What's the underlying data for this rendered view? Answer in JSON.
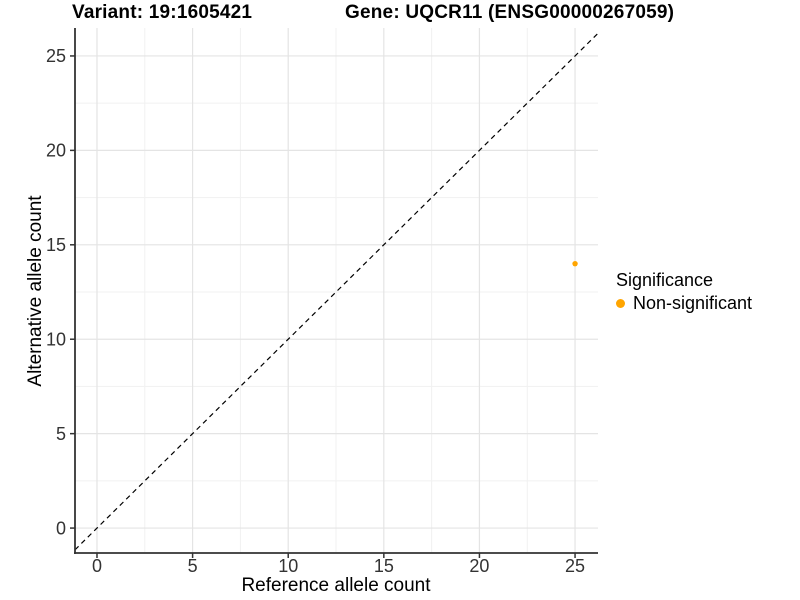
{
  "chart_data": {
    "type": "scatter",
    "title_left": "Variant: 19:1605421",
    "title_right": "Gene: UQCR11 (ENSG00000267059)",
    "xlabel": "Reference allele count",
    "ylabel": "Alternative allele count",
    "xlim": [
      -1.15,
      26.2
    ],
    "ylim": [
      -1.32,
      26.48
    ],
    "xticks": [
      0,
      5,
      10,
      15,
      20,
      25
    ],
    "yticks": [
      0,
      5,
      10,
      15,
      20,
      25
    ],
    "x_minor": [
      2.5,
      7.5,
      12.5,
      17.5,
      22.5
    ],
    "y_minor": [
      2.5,
      7.5,
      12.5,
      17.5,
      22.5
    ],
    "grid": true,
    "identity_line": {
      "slope": 1,
      "intercept": 0,
      "style": "dashed",
      "color": "#000000"
    },
    "series": [
      {
        "name": "Non-significant",
        "color": "#FFA500",
        "points": [
          {
            "x": 25,
            "y": 14
          }
        ]
      }
    ],
    "legend": {
      "title": "Significance",
      "position": "right",
      "entries": [
        {
          "label": "Non-significant",
          "color": "#FFA500"
        }
      ]
    },
    "colors": {
      "point": "#FFA500",
      "grid_major": "#E4E4E4",
      "grid_minor": "#F1F1F1",
      "axis": "#333333",
      "tick_text": "#333333",
      "title_text": "#000000",
      "background": "#FFFFFF"
    }
  }
}
